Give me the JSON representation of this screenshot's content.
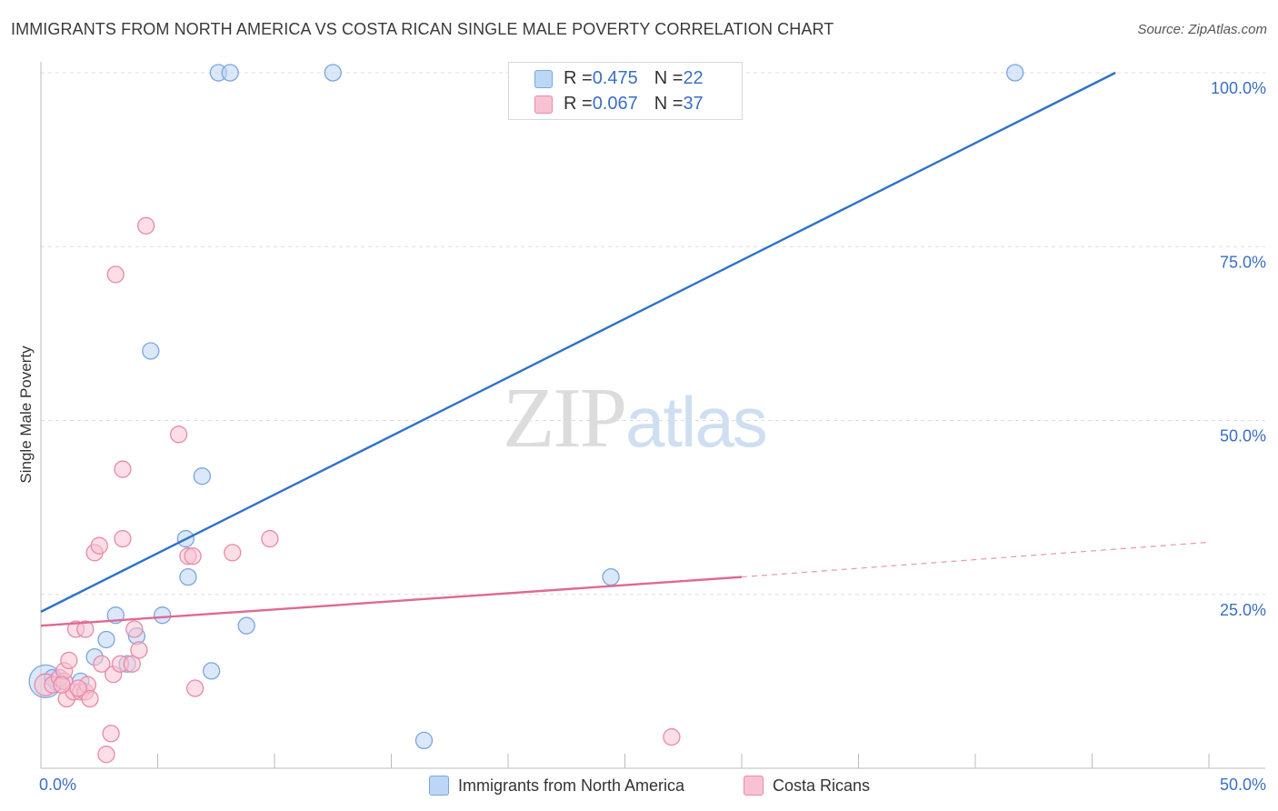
{
  "title": "IMMIGRANTS FROM NORTH AMERICA VS COSTA RICAN SINGLE MALE POVERTY CORRELATION CHART",
  "source": "Source: ZipAtlas.com",
  "watermark": {
    "zip": "ZIP",
    "atlas": "atlas"
  },
  "legend_top": {
    "rows": [
      {
        "r_label": "R = ",
        "r_value": "0.475",
        "n_label": "N = ",
        "n_value": "22",
        "color": "#a9c8f0"
      },
      {
        "r_label": "R = ",
        "r_value": "0.067",
        "n_label": "N = ",
        "n_value": "37",
        "color": "#f5b8cb"
      }
    ]
  },
  "colors": {
    "blue_fill": "#bcd6f5",
    "blue_stroke": "#7aa6de",
    "blue_line": "#2e72c9",
    "pink_fill": "#f7c3d2",
    "pink_stroke": "#e88aa8",
    "pink_line": "#e06892",
    "tick_label": "#3a6fc4",
    "grid": "#dddddd"
  },
  "chart_data": {
    "type": "scatter",
    "title": "IMMIGRANTS FROM NORTH AMERICA VS COSTA RICAN SINGLE MALE POVERTY CORRELATION CHART",
    "xlabel": "",
    "ylabel": "Single Male Poverty",
    "xlim": [
      0,
      50
    ],
    "ylim": [
      0,
      100
    ],
    "x_ticks": [
      "0.0%",
      "50.0%"
    ],
    "y_ticks": [
      {
        "value": 25,
        "label": "25.0%"
      },
      {
        "value": 50,
        "label": "50.0%"
      },
      {
        "value": 75,
        "label": "75.0%"
      },
      {
        "value": 100,
        "label": "100.0%"
      }
    ],
    "grid": true,
    "legend_position": "bottom",
    "series": [
      {
        "name": "Immigrants from North America",
        "color": "#bcd6f5",
        "r": "0.475",
        "n": "22",
        "points": [
          [
            0.2,
            12.5,
            18
          ],
          [
            0.7,
            12.5,
            10
          ],
          [
            1.7,
            12.5,
            9
          ],
          [
            2.3,
            16.0,
            9
          ],
          [
            2.8,
            18.5,
            9
          ],
          [
            3.2,
            22.0,
            9
          ],
          [
            3.7,
            15.0,
            9
          ],
          [
            4.1,
            19.0,
            9
          ],
          [
            4.7,
            60.0,
            9
          ],
          [
            5.2,
            22.0,
            9
          ],
          [
            6.2,
            33.0,
            9
          ],
          [
            6.3,
            27.5,
            9
          ],
          [
            6.9,
            42.0,
            9
          ],
          [
            7.3,
            14.0,
            9
          ],
          [
            7.6,
            100.0,
            9
          ],
          [
            8.1,
            100.0,
            9
          ],
          [
            8.8,
            20.5,
            9
          ],
          [
            12.5,
            100.0,
            9
          ],
          [
            16.4,
            4.0,
            9
          ],
          [
            24.4,
            27.5,
            9
          ],
          [
            41.7,
            100.0,
            9
          ],
          [
            0.5,
            13.0,
            9
          ]
        ],
        "trend": {
          "x": [
            0,
            46
          ],
          "y": [
            22.5,
            100
          ]
        }
      },
      {
        "name": "Costa Ricans",
        "color": "#f7c3d2",
        "r": "0.067",
        "n": "37",
        "points": [
          [
            0.2,
            12.0,
            12
          ],
          [
            0.5,
            12.0,
            9
          ],
          [
            0.8,
            13.0,
            9
          ],
          [
            1.0,
            12.5,
            9
          ],
          [
            1.0,
            14.0,
            9
          ],
          [
            1.1,
            10.0,
            9
          ],
          [
            1.2,
            15.5,
            9
          ],
          [
            1.4,
            11.0,
            9
          ],
          [
            1.5,
            20.0,
            9
          ],
          [
            1.7,
            11.0,
            9
          ],
          [
            1.9,
            11.0,
            9
          ],
          [
            1.9,
            20.0,
            9
          ],
          [
            2.0,
            12.0,
            9
          ],
          [
            2.1,
            10.0,
            9
          ],
          [
            2.3,
            31.0,
            9
          ],
          [
            2.5,
            32.0,
            9
          ],
          [
            2.6,
            15.0,
            9
          ],
          [
            2.8,
            2.0,
            9
          ],
          [
            3.0,
            5.0,
            9
          ],
          [
            3.1,
            13.5,
            9
          ],
          [
            3.2,
            71.0,
            9
          ],
          [
            3.4,
            15.0,
            9
          ],
          [
            3.5,
            43.0,
            9
          ],
          [
            3.5,
            33.0,
            9
          ],
          [
            3.9,
            15.0,
            9
          ],
          [
            4.0,
            20.0,
            9
          ],
          [
            4.2,
            17.0,
            9
          ],
          [
            4.5,
            78.0,
            9
          ],
          [
            5.9,
            48.0,
            9
          ],
          [
            6.3,
            30.5,
            9
          ],
          [
            6.5,
            30.5,
            9
          ],
          [
            6.6,
            11.5,
            9
          ],
          [
            8.2,
            31.0,
            9
          ],
          [
            9.8,
            33.0,
            9
          ],
          [
            27.0,
            4.5,
            9
          ],
          [
            0.9,
            12.0,
            9
          ],
          [
            1.6,
            11.5,
            9
          ]
        ],
        "trend": {
          "x": [
            0,
            30
          ],
          "y": [
            20.5,
            27.5
          ]
        },
        "trend_extension": {
          "x": [
            30,
            50
          ],
          "y": [
            27.5,
            32.5
          ]
        }
      }
    ]
  }
}
